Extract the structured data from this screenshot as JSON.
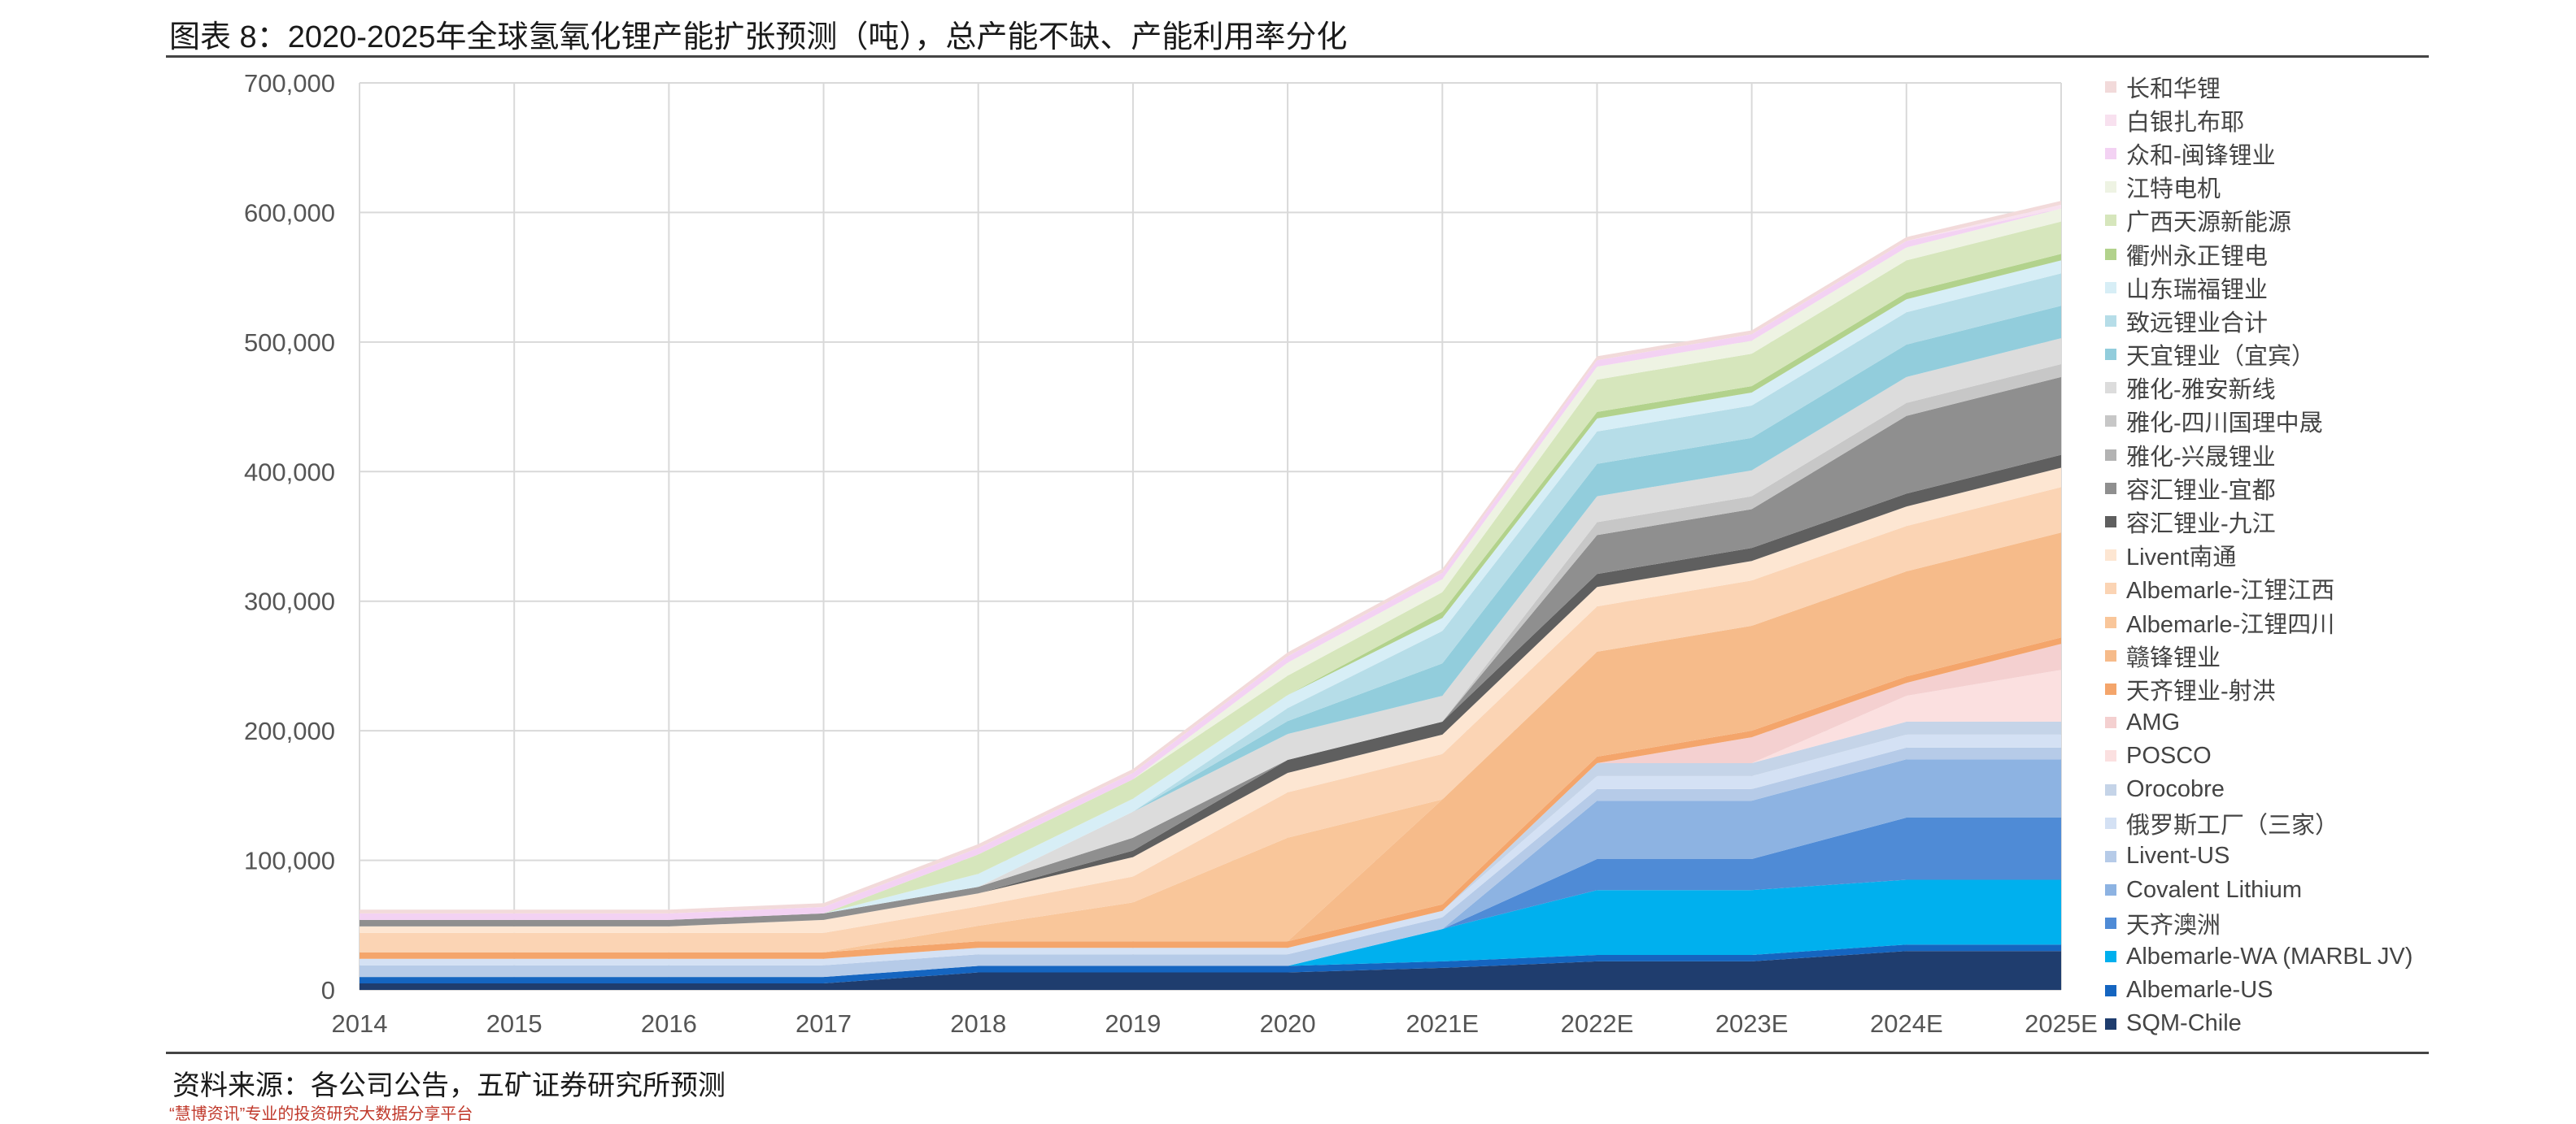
{
  "title": "图表 8：2020-2025年全球氢氧化锂产能扩张预测（吨），总产能不缺、产能利用率分化",
  "source": "资料来源：各公司公告，五矿证券研究所预测",
  "footer_fragment": "“慧博资讯”专业的投资研究大数据分享平台",
  "chart_data": {
    "type": "area",
    "stacked": true,
    "title": "",
    "xlabel": "",
    "ylabel": "",
    "ylim": [
      0,
      700000
    ],
    "ytick_labels": [
      "0",
      "100,000",
      "200,000",
      "300,000",
      "400,000",
      "500,000",
      "600,000",
      "700,000"
    ],
    "grid": true,
    "legend_position": "right",
    "categories": [
      "2014",
      "2015",
      "2016",
      "2017",
      "2018",
      "2019",
      "2020",
      "2021E",
      "2022E",
      "2023E",
      "2024E",
      "2025E"
    ],
    "series": [
      {
        "name": "SQM-Chile",
        "color": "#1f3d6e",
        "values": [
          5000,
          5000,
          5000,
          5000,
          13500,
          13500,
          13500,
          17000,
          22000,
          22000,
          30000,
          30000
        ]
      },
      {
        "name": "Albemarle-US",
        "color": "#1565c0",
        "values": [
          5000,
          5000,
          5000,
          5000,
          5000,
          5000,
          5000,
          5000,
          5000,
          5000,
          5000,
          5000
        ]
      },
      {
        "name": "Albemarle-WA (MARBL JV)",
        "color": "#00b0ee",
        "values": [
          0,
          0,
          0,
          0,
          0,
          0,
          0,
          25000,
          50000,
          50000,
          50000,
          50000
        ]
      },
      {
        "name": "天齐澳洲",
        "color": "#4f8bd6",
        "values": [
          0,
          0,
          0,
          0,
          0,
          0,
          0,
          0,
          24000,
          24000,
          48000,
          48000
        ]
      },
      {
        "name": "Covalent Lithium",
        "color": "#8db3e2",
        "values": [
          0,
          0,
          0,
          0,
          0,
          0,
          0,
          0,
          45000,
          45000,
          45000,
          45000
        ]
      },
      {
        "name": "Livent-US",
        "color": "#b6cbe8",
        "values": [
          9000,
          9000,
          9000,
          9000,
          9000,
          9000,
          9000,
          9000,
          9000,
          9000,
          9000,
          9000
        ]
      },
      {
        "name": "俄罗斯工厂（三家）",
        "color": "#d4e1f4",
        "values": [
          5000,
          5000,
          5000,
          5000,
          5000,
          5000,
          5000,
          5000,
          10000,
          10000,
          10000,
          10000
        ]
      },
      {
        "name": "Orocobre",
        "color": "#c5d4e8",
        "values": [
          0,
          0,
          0,
          0,
          0,
          0,
          0,
          0,
          10000,
          10000,
          10000,
          10000
        ]
      },
      {
        "name": "POSCO",
        "color": "#fbe0e0",
        "values": [
          0,
          0,
          0,
          0,
          0,
          0,
          0,
          0,
          0,
          0,
          20000,
          40000
        ]
      },
      {
        "name": "AMG",
        "color": "#f4d0d0",
        "values": [
          0,
          0,
          0,
          0,
          0,
          0,
          0,
          0,
          0,
          20000,
          10000,
          20000
        ]
      },
      {
        "name": "天齐锂业-射洪",
        "color": "#f4a56b",
        "values": [
          5000,
          5000,
          5000,
          5000,
          5000,
          5000,
          5000,
          5000,
          5000,
          5000,
          5000,
          5000
        ]
      },
      {
        "name": "赣锋锂业",
        "color": "#f6bb8a",
        "values": [
          0,
          0,
          0,
          0,
          0,
          0,
          0,
          81000,
          81000,
          81000,
          81000,
          81000
        ]
      },
      {
        "name": "Albemarle-江锂四川",
        "color": "#f9c69a",
        "values": [
          0,
          0,
          0,
          0,
          12000,
          30000,
          80000,
          0,
          0,
          0,
          0,
          0
        ]
      },
      {
        "name": "Albemarle-江锂江西",
        "color": "#fbd4b4",
        "values": [
          15000,
          15000,
          15000,
          15000,
          15000,
          20000,
          35000,
          35000,
          35000,
          35000,
          35000,
          35000
        ]
      },
      {
        "name": "Livent南通",
        "color": "#fde6d2",
        "values": [
          5000,
          5000,
          5000,
          10000,
          10000,
          15000,
          15000,
          15000,
          15000,
          15000,
          15000,
          15000
        ]
      },
      {
        "name": "容汇锂业-九江",
        "color": "#5f5f5f",
        "values": [
          0,
          0,
          0,
          0,
          0,
          5000,
          10000,
          10000,
          10000,
          10000,
          10000,
          10000
        ]
      },
      {
        "name": "容汇锂业-宜都",
        "color": "#8f8f8f",
        "values": [
          5000,
          5000,
          5000,
          5000,
          5000,
          10000,
          0,
          0,
          30000,
          30000,
          60000,
          60000
        ]
      },
      {
        "name": "雅化-兴晟锂业",
        "color": "#b3b3b3",
        "values": [
          0,
          0,
          0,
          0,
          0,
          0,
          0,
          0,
          0,
          0,
          0,
          0
        ]
      },
      {
        "name": "雅化-四川国理中晟",
        "color": "#c7c7c7",
        "values": [
          0,
          0,
          0,
          0,
          0,
          0,
          0,
          0,
          10000,
          10000,
          10000,
          10000
        ]
      },
      {
        "name": "雅化-雅安新线",
        "color": "#dcdcdc",
        "values": [
          0,
          0,
          0,
          0,
          0,
          20000,
          20000,
          20000,
          20000,
          20000,
          20000,
          20000
        ]
      },
      {
        "name": "天宜锂业（宜宾）",
        "color": "#92cddc",
        "values": [
          0,
          0,
          0,
          0,
          0,
          0,
          10000,
          25000,
          25000,
          25000,
          25000,
          25000
        ]
      },
      {
        "name": "致远锂业合计",
        "color": "#b6dde8",
        "values": [
          0,
          0,
          0,
          0,
          0,
          0,
          10000,
          25000,
          25000,
          25000,
          25000,
          25000
        ]
      },
      {
        "name": "山东瑞福锂业",
        "color": "#d7eef6",
        "values": [
          0,
          0,
          0,
          0,
          10000,
          10000,
          10000,
          10000,
          10000,
          10000,
          10000,
          10000
        ]
      },
      {
        "name": "衢州永正锂电",
        "color": "#b2d28c",
        "values": [
          0,
          0,
          0,
          0,
          0,
          0,
          0,
          5000,
          5000,
          5000,
          5000,
          5000
        ]
      },
      {
        "name": "广西天源新能源",
        "color": "#d6e6bc",
        "values": [
          0,
          0,
          0,
          0,
          15000,
          15000,
          15000,
          15000,
          25000,
          25000,
          25000,
          25000
        ]
      },
      {
        "name": "江特电机",
        "color": "#eef3e3",
        "values": [
          0,
          0,
          0,
          0,
          0,
          0,
          10000,
          10000,
          10000,
          10000,
          10000,
          10000
        ]
      },
      {
        "name": "众和-闽锋锂业",
        "color": "#f3d2f3",
        "values": [
          5000,
          5000,
          5000,
          5000,
          5000,
          5000,
          5000,
          5000,
          5000,
          5000,
          5000,
          0
        ]
      },
      {
        "name": "白银扎布耶",
        "color": "#f8e1ef",
        "values": [
          0,
          0,
          0,
          0,
          0,
          0,
          0,
          0,
          0,
          0,
          0,
          3000
        ]
      },
      {
        "name": "长和华锂",
        "color": "#f2dada",
        "values": [
          3000,
          3000,
          3000,
          3000,
          3000,
          3000,
          3000,
          3000,
          3000,
          3000,
          3000,
          3000
        ]
      }
    ]
  }
}
